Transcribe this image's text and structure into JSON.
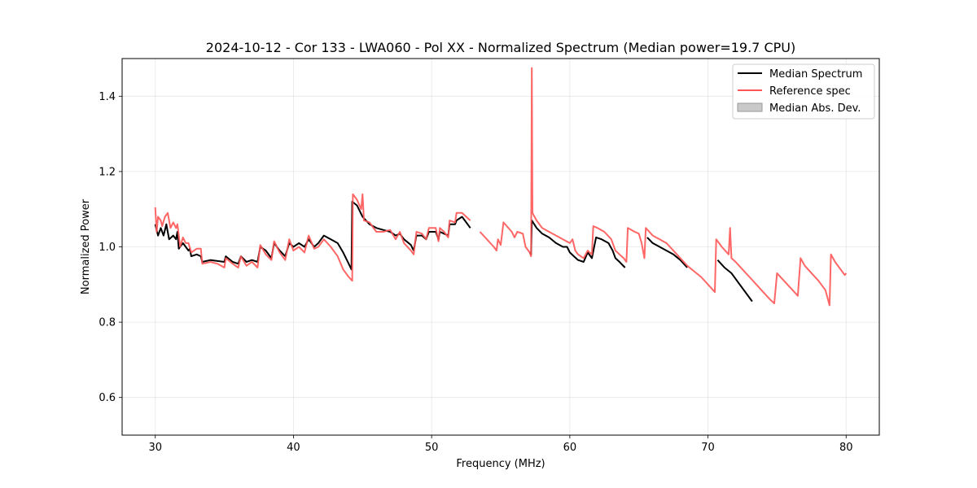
{
  "chart_data": {
    "type": "line",
    "title": "2024-10-12 - Cor 133 - LWA060 - Pol XX - Normalized Spectrum (Median power=19.7 CPU)",
    "xlabel": "Frequency (MHz)",
    "ylabel": "Normalized Power",
    "xlim": [
      27.6,
      82.4
    ],
    "ylim": [
      0.5,
      1.5
    ],
    "xticks": [
      30,
      40,
      50,
      60,
      70,
      80
    ],
    "yticks": [
      0.6,
      0.8,
      1.0,
      1.2,
      1.4
    ],
    "grid": true,
    "legend_position": "upper right",
    "colors": {
      "median": "#000000",
      "reference": "#ff5555",
      "mad": "#bbbbbb"
    },
    "series": [
      {
        "name": "Median Spectrum",
        "segments": [
          [
            [
              30.0,
              1.06
            ],
            [
              30.2,
              1.03
            ],
            [
              30.4,
              1.05
            ],
            [
              30.6,
              1.03
            ],
            [
              30.8,
              1.06
            ],
            [
              31.0,
              1.02
            ],
            [
              31.3,
              1.03
            ],
            [
              31.5,
              1.02
            ],
            [
              31.6,
              1.04
            ],
            [
              31.7,
              0.995
            ],
            [
              32.0,
              1.01
            ],
            [
              32.2,
              1.0
            ],
            [
              32.4,
              0.99
            ],
            [
              32.5,
              0.995
            ],
            [
              32.6,
              0.975
            ],
            [
              33.0,
              0.98
            ],
            [
              33.3,
              0.975
            ],
            [
              33.4,
              0.96
            ],
            [
              34.0,
              0.965
            ],
            [
              35.0,
              0.96
            ],
            [
              35.1,
              0.975
            ],
            [
              35.6,
              0.96
            ],
            [
              36.0,
              0.955
            ],
            [
              36.2,
              0.975
            ],
            [
              36.6,
              0.96
            ],
            [
              37.0,
              0.965
            ],
            [
              37.4,
              0.96
            ],
            [
              37.6,
              1.0
            ],
            [
              38.0,
              0.99
            ],
            [
              38.4,
              0.97
            ],
            [
              38.6,
              1.01
            ],
            [
              39.0,
              0.99
            ],
            [
              39.4,
              0.975
            ],
            [
              39.7,
              1.01
            ],
            [
              40.0,
              1.0
            ],
            [
              40.4,
              1.01
            ],
            [
              40.8,
              1.0
            ],
            [
              41.1,
              1.02
            ],
            [
              41.5,
              1.0
            ],
            [
              41.8,
              1.01
            ],
            [
              42.2,
              1.03
            ],
            [
              42.7,
              1.02
            ],
            [
              43.2,
              1.01
            ],
            [
              43.6,
              0.985
            ],
            [
              44.0,
              0.955
            ],
            [
              44.2,
              0.94
            ],
            [
              44.25,
              1.12
            ],
            [
              44.6,
              1.11
            ],
            [
              45.0,
              1.08
            ],
            [
              45.5,
              1.06
            ],
            [
              46.0,
              1.05
            ],
            [
              46.5,
              1.045
            ],
            [
              47.0,
              1.04
            ],
            [
              47.4,
              1.03
            ],
            [
              47.7,
              1.035
            ],
            [
              48.0,
              1.02
            ],
            [
              48.5,
              1.005
            ],
            [
              48.7,
              0.99
            ],
            [
              48.9,
              1.03
            ],
            [
              49.3,
              1.03
            ],
            [
              49.6,
              1.02
            ],
            [
              49.8,
              1.04
            ],
            [
              50.3,
              1.04
            ],
            [
              50.5,
              1.02
            ],
            [
              50.6,
              1.04
            ],
            [
              50.9,
              1.035
            ],
            [
              51.2,
              1.03
            ],
            [
              51.3,
              1.06
            ],
            [
              51.7,
              1.06
            ],
            [
              51.8,
              1.07
            ],
            [
              52.2,
              1.08
            ],
            [
              52.5,
              1.065
            ],
            [
              52.8,
              1.05
            ]
          ],
          [
            [
              57.1,
              0.985
            ],
            [
              57.2,
              0.98
            ],
            [
              57.25,
              1.07
            ],
            [
              57.6,
              1.05
            ],
            [
              58.0,
              1.035
            ],
            [
              58.5,
              1.025
            ],
            [
              59.0,
              1.01
            ],
            [
              59.5,
              1.0
            ],
            [
              59.8,
              1.0
            ],
            [
              60.0,
              0.985
            ],
            [
              60.3,
              0.975
            ],
            [
              60.6,
              0.965
            ],
            [
              61.0,
              0.96
            ],
            [
              61.3,
              0.985
            ],
            [
              61.6,
              0.97
            ],
            [
              61.9,
              1.025
            ],
            [
              62.3,
              1.02
            ],
            [
              62.8,
              1.01
            ],
            [
              63.1,
              0.99
            ],
            [
              63.3,
              0.97
            ],
            [
              63.6,
              0.96
            ],
            [
              64.0,
              0.945
            ]
          ],
          [
            [
              65.6,
              1.025
            ],
            [
              66.0,
              1.01
            ],
            [
              66.5,
              1.0
            ],
            [
              67.0,
              0.99
            ],
            [
              67.5,
              0.98
            ],
            [
              68.0,
              0.965
            ],
            [
              68.5,
              0.945
            ]
          ],
          [
            [
              70.7,
              0.965
            ],
            [
              71.2,
              0.945
            ],
            [
              71.7,
              0.93
            ],
            [
              72.3,
              0.9
            ],
            [
              72.8,
              0.875
            ],
            [
              73.2,
              0.855
            ]
          ]
        ]
      },
      {
        "name": "Reference spec",
        "segments": [
          [
            [
              30.0,
              1.105
            ],
            [
              30.1,
              1.04
            ],
            [
              30.2,
              1.08
            ],
            [
              30.4,
              1.07
            ],
            [
              30.5,
              1.055
            ],
            [
              30.7,
              1.08
            ],
            [
              30.9,
              1.09
            ],
            [
              31.1,
              1.05
            ],
            [
              31.3,
              1.065
            ],
            [
              31.5,
              1.05
            ],
            [
              31.6,
              1.06
            ],
            [
              31.8,
              1.0
            ],
            [
              32.0,
              1.025
            ],
            [
              32.2,
              1.01
            ],
            [
              32.4,
              1.01
            ],
            [
              32.6,
              0.985
            ],
            [
              33.0,
              0.995
            ],
            [
              33.3,
              0.995
            ],
            [
              33.4,
              0.955
            ],
            [
              34.0,
              0.96
            ],
            [
              34.5,
              0.955
            ],
            [
              35.0,
              0.945
            ],
            [
              35.1,
              0.97
            ],
            [
              35.6,
              0.955
            ],
            [
              36.0,
              0.945
            ],
            [
              36.2,
              0.975
            ],
            [
              36.6,
              0.95
            ],
            [
              37.0,
              0.96
            ],
            [
              37.4,
              0.945
            ],
            [
              37.6,
              1.005
            ],
            [
              38.0,
              0.98
            ],
            [
              38.4,
              0.965
            ],
            [
              38.6,
              1.015
            ],
            [
              39.0,
              0.985
            ],
            [
              39.4,
              0.965
            ],
            [
              39.7,
              1.02
            ],
            [
              40.0,
              0.99
            ],
            [
              40.4,
              1.0
            ],
            [
              40.8,
              0.985
            ],
            [
              41.1,
              1.03
            ],
            [
              41.5,
              0.995
            ],
            [
              41.8,
              1.0
            ],
            [
              42.2,
              1.02
            ],
            [
              42.7,
              1.0
            ],
            [
              43.2,
              0.975
            ],
            [
              43.6,
              0.94
            ],
            [
              44.0,
              0.92
            ],
            [
              44.25,
              0.91
            ],
            [
              44.3,
              1.14
            ],
            [
              44.6,
              1.125
            ],
            [
              44.9,
              1.1
            ],
            [
              45.0,
              1.14
            ],
            [
              45.1,
              1.07
            ],
            [
              45.5,
              1.065
            ],
            [
              46.0,
              1.04
            ],
            [
              46.5,
              1.04
            ],
            [
              47.0,
              1.045
            ],
            [
              47.4,
              1.02
            ],
            [
              47.7,
              1.04
            ],
            [
              48.0,
              1.01
            ],
            [
              48.5,
              0.99
            ],
            [
              48.7,
              0.98
            ],
            [
              48.9,
              1.04
            ],
            [
              49.3,
              1.035
            ],
            [
              49.6,
              1.02
            ],
            [
              49.8,
              1.05
            ],
            [
              50.3,
              1.05
            ],
            [
              50.5,
              1.015
            ],
            [
              50.6,
              1.05
            ],
            [
              50.9,
              1.04
            ],
            [
              51.2,
              1.025
            ],
            [
              51.3,
              1.07
            ],
            [
              51.7,
              1.065
            ],
            [
              51.8,
              1.09
            ],
            [
              52.2,
              1.09
            ],
            [
              52.8,
              1.07
            ]
          ],
          [
            [
              53.5,
              1.04
            ],
            [
              54.0,
              1.02
            ],
            [
              54.5,
              1.0
            ],
            [
              54.7,
              0.99
            ],
            [
              54.8,
              1.02
            ],
            [
              55.0,
              1.005
            ],
            [
              55.2,
              1.065
            ],
            [
              55.8,
              1.04
            ],
            [
              56.0,
              1.025
            ],
            [
              56.2,
              1.04
            ],
            [
              56.6,
              1.035
            ],
            [
              56.8,
              1.0
            ],
            [
              57.1,
              0.985
            ],
            [
              57.2,
              0.975
            ],
            [
              57.25,
              1.475
            ],
            [
              57.3,
              1.09
            ],
            [
              57.6,
              1.07
            ],
            [
              58.0,
              1.05
            ],
            [
              58.5,
              1.04
            ],
            [
              59.0,
              1.03
            ],
            [
              59.5,
              1.02
            ],
            [
              60.0,
              1.01
            ],
            [
              60.2,
              1.02
            ],
            [
              60.4,
              0.99
            ],
            [
              60.6,
              0.98
            ],
            [
              61.0,
              0.97
            ],
            [
              61.3,
              0.99
            ],
            [
              61.6,
              0.98
            ],
            [
              61.7,
              1.055
            ],
            [
              62.0,
              1.05
            ],
            [
              62.5,
              1.04
            ],
            [
              63.0,
              1.02
            ],
            [
              63.3,
              0.99
            ],
            [
              63.6,
              0.98
            ],
            [
              63.9,
              0.97
            ],
            [
              64.1,
              0.96
            ],
            [
              64.2,
              1.05
            ],
            [
              64.7,
              1.04
            ],
            [
              65.0,
              1.035
            ],
            [
              65.2,
              1.01
            ],
            [
              65.4,
              0.97
            ],
            [
              65.5,
              1.05
            ],
            [
              66.0,
              1.03
            ],
            [
              66.5,
              1.02
            ],
            [
              67.0,
              1.01
            ],
            [
              67.5,
              0.99
            ],
            [
              68.0,
              0.97
            ],
            [
              68.5,
              0.95
            ],
            [
              69.0,
              0.935
            ],
            [
              69.5,
              0.92
            ],
            [
              70.0,
              0.9
            ],
            [
              70.5,
              0.88
            ],
            [
              70.6,
              1.02
            ],
            [
              71.0,
              1.0
            ],
            [
              71.5,
              0.98
            ],
            [
              71.6,
              1.05
            ],
            [
              71.7,
              0.97
            ],
            [
              72.0,
              0.96
            ],
            [
              72.5,
              0.94
            ],
            [
              73.0,
              0.92
            ],
            [
              73.5,
              0.9
            ],
            [
              74.0,
              0.88
            ],
            [
              74.5,
              0.86
            ],
            [
              74.8,
              0.85
            ],
            [
              75.0,
              0.93
            ],
            [
              75.5,
              0.91
            ],
            [
              76.0,
              0.89
            ],
            [
              76.5,
              0.87
            ],
            [
              76.7,
              0.97
            ],
            [
              77.0,
              0.95
            ],
            [
              77.5,
              0.93
            ],
            [
              78.0,
              0.91
            ],
            [
              78.5,
              0.885
            ],
            [
              78.8,
              0.845
            ],
            [
              78.9,
              0.98
            ],
            [
              79.2,
              0.96
            ],
            [
              79.5,
              0.945
            ],
            [
              79.9,
              0.925
            ],
            [
              80.0,
              0.93
            ]
          ]
        ]
      }
    ],
    "legend": [
      {
        "label": "Median Spectrum",
        "kind": "line",
        "color": "#000000"
      },
      {
        "label": "Reference spec",
        "kind": "line",
        "color": "#ff5555"
      },
      {
        "label": "Median Abs. Dev.",
        "kind": "patch",
        "color": "#bbbbbb"
      }
    ]
  }
}
